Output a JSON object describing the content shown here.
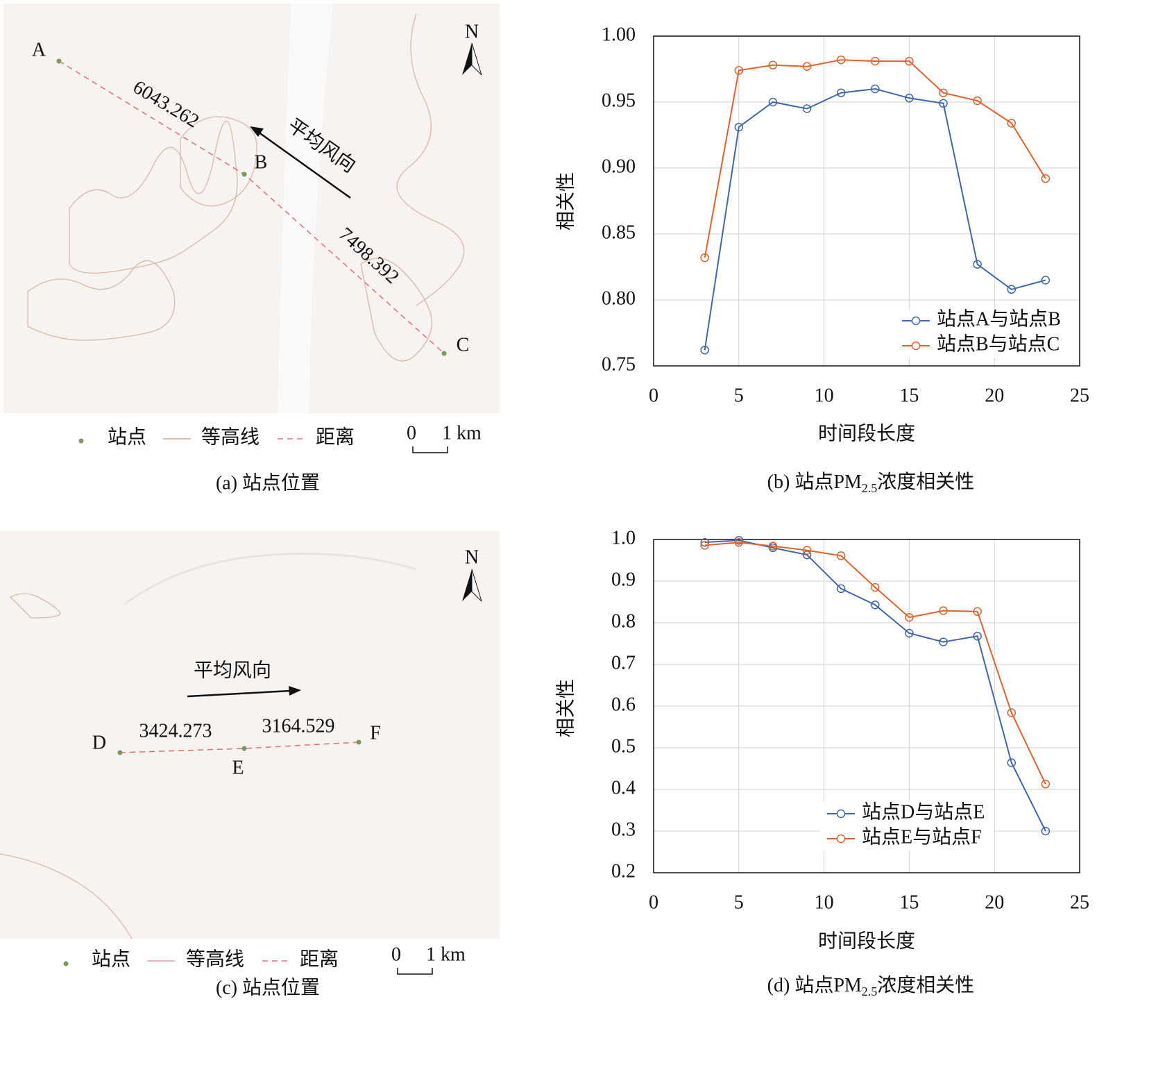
{
  "chart_data": [
    {
      "type": "line",
      "x_label": "时间段长度",
      "y_label": "相关性",
      "caption": {
        "prefix": "(b) 站点PM",
        "sub": "2.5",
        "suffix": "浓度相关性"
      },
      "x": [
        3,
        5,
        7,
        9,
        11,
        13,
        15,
        17,
        19,
        21,
        23
      ],
      "series": [
        {
          "name": "站点A与站点B",
          "color": "#3f66a8",
          "values": [
            0.762,
            0.931,
            0.95,
            0.945,
            0.957,
            0.96,
            0.953,
            0.949,
            0.827,
            0.808,
            0.815
          ]
        },
        {
          "name": "站点B与站点C",
          "color": "#e0622a",
          "values": [
            0.832,
            0.974,
            0.978,
            0.977,
            0.982,
            0.981,
            0.981,
            0.957,
            0.951,
            0.934,
            0.892
          ]
        }
      ],
      "xlim": [
        0,
        25
      ],
      "xticks": [
        0,
        5,
        10,
        15,
        20,
        25
      ],
      "ylim": [
        0.75,
        1.0
      ],
      "yticks": [
        {
          "value": 0.75,
          "label": "0.75"
        },
        {
          "value": 0.8,
          "label": "0.80"
        },
        {
          "value": 0.85,
          "label": "0.85"
        },
        {
          "value": 0.9,
          "label": "0.90"
        },
        {
          "value": 0.95,
          "label": "0.95"
        },
        {
          "value": 1,
          "label": "1.00"
        }
      ],
      "grid": true,
      "legend": "lower right"
    },
    {
      "type": "line",
      "x_label": "时间段长度",
      "y_label": "相关性",
      "caption": {
        "prefix": "(d) 站点PM",
        "sub": "2.5",
        "suffix": "浓度相关性"
      },
      "x": [
        3,
        5,
        7,
        9,
        11,
        13,
        15,
        17,
        19,
        21,
        23
      ],
      "series": [
        {
          "name": "站点D与站点E",
          "color": "#3f66a8",
          "values": [
            0.993,
            0.998,
            0.98,
            0.963,
            0.882,
            0.843,
            0.775,
            0.754,
            0.768,
            0.464,
            0.3
          ]
        },
        {
          "name": "站点E与站点F",
          "color": "#e0622a",
          "values": [
            0.986,
            0.993,
            0.984,
            0.974,
            0.961,
            0.885,
            0.813,
            0.829,
            0.827,
            0.584,
            0.413
          ]
        }
      ],
      "xlim": [
        0,
        25
      ],
      "xticks": [
        0,
        5,
        10,
        15,
        20,
        25
      ],
      "ylim": [
        0.2,
        1.0
      ],
      "yticks": [
        0.2,
        0.3,
        0.4,
        0.5,
        0.6,
        0.7,
        0.8,
        0.9,
        {
          "value": 1,
          "label": "1.0"
        }
      ],
      "grid": true,
      "legend": "lower right"
    }
  ],
  "maps": [
    {
      "north": "N",
      "stations": [
        "A",
        "B",
        "C"
      ],
      "distances": [
        6043.262,
        7498.392
      ],
      "wind": "平均风向",
      "legend": [
        "站点",
        "等高线",
        "距离"
      ],
      "scale": [
        "0",
        "1 km"
      ],
      "caption": "(a) 站点位置"
    },
    {
      "north": "N",
      "stations": [
        "D",
        "E",
        "F"
      ],
      "distances": [
        3424.273,
        3164.529
      ],
      "wind": "平均风向",
      "legend": [
        "站点",
        "等高线",
        "距离"
      ],
      "scale": [
        "0",
        "1 km"
      ],
      "caption": "(c) 站点位置"
    }
  ]
}
